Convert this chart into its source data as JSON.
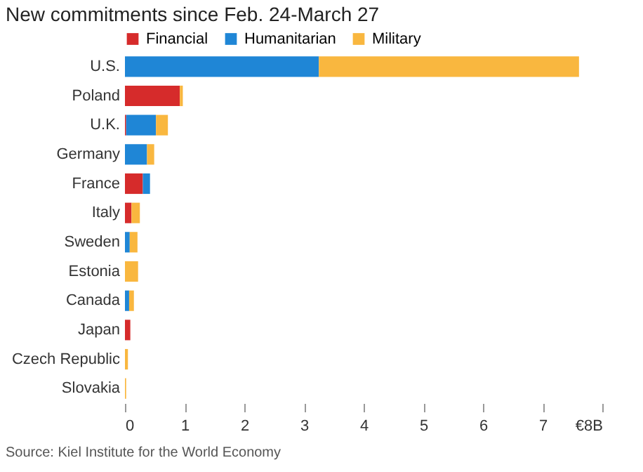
{
  "chart_data": {
    "type": "bar",
    "orientation": "horizontal",
    "stacked": true,
    "title": "New commitments since Feb. 24-March 27",
    "categories": [
      "U.S.",
      "Poland",
      "U.K.",
      "Germany",
      "France",
      "Italy",
      "Sweden",
      "Estonia",
      "Canada",
      "Japan",
      "Czech Republic",
      "Slovakia"
    ],
    "series": [
      {
        "name": "Financial",
        "color": "#d62b2b",
        "values": [
          0,
          0.92,
          0.02,
          0,
          0.3,
          0.11,
          0,
          0,
          0,
          0.09,
          0,
          0
        ]
      },
      {
        "name": "Humanitarian",
        "color": "#1f86d6",
        "values": [
          3.25,
          0,
          0.5,
          0.37,
          0.12,
          0,
          0.08,
          0,
          0.07,
          0,
          0,
          0
        ]
      },
      {
        "name": "Military",
        "color": "#f9b73f",
        "values": [
          4.36,
          0.05,
          0.2,
          0.12,
          0,
          0.14,
          0.13,
          0.22,
          0.08,
          0,
          0.05,
          0.02
        ]
      }
    ],
    "xlim": [
      0,
      8
    ],
    "xticks": [
      0,
      1,
      2,
      3,
      4,
      5,
      6,
      7,
      {
        "value": 8,
        "label": "€8B"
      }
    ],
    "grid": false,
    "legend": "top left",
    "annotations": [
      "Source: Kiel Institute for the World Economy"
    ]
  }
}
